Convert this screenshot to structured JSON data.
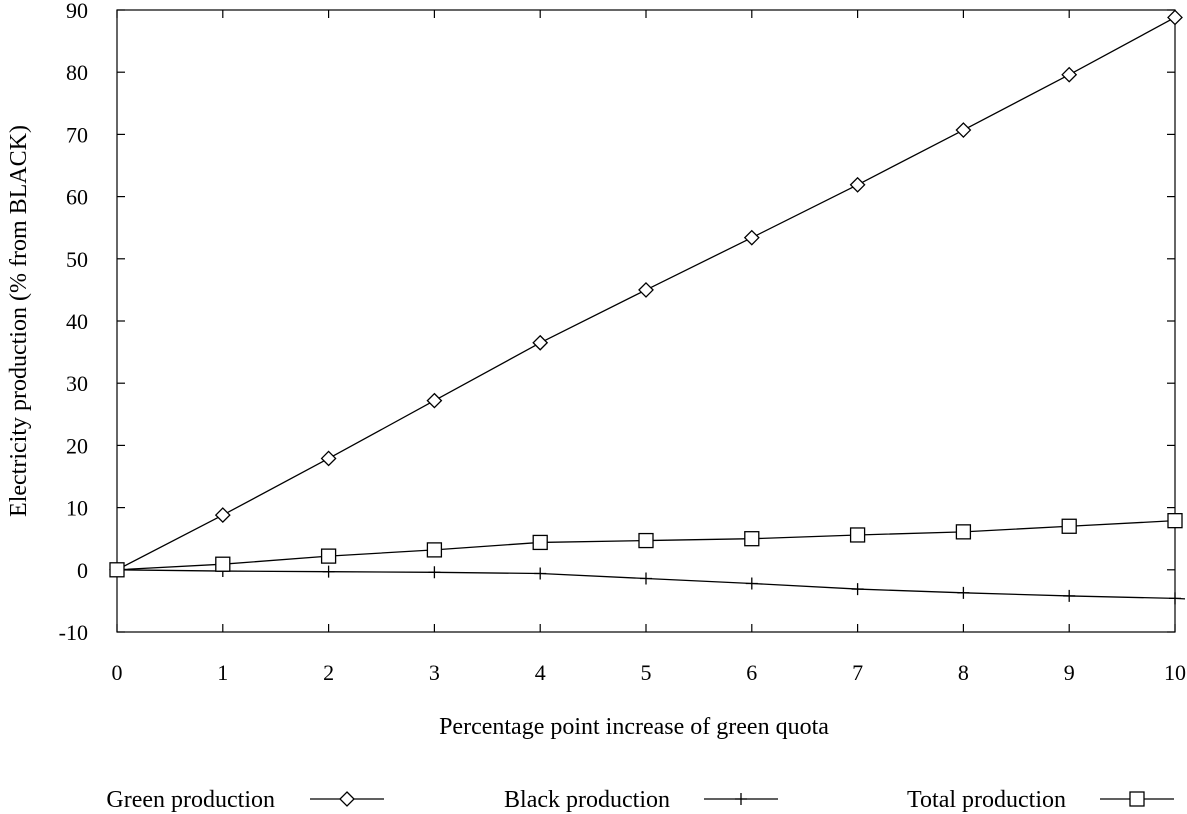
{
  "chart_data": {
    "type": "line",
    "title": "",
    "xlabel": "Percentage point increase of green quota",
    "ylabel": "Electricity production (% from BLACK)",
    "xlim": [
      0,
      10
    ],
    "ylim": [
      -10,
      90
    ],
    "x_ticks": [
      0,
      1,
      2,
      3,
      4,
      5,
      6,
      7,
      8,
      9,
      10
    ],
    "y_ticks": [
      -10,
      0,
      10,
      20,
      30,
      40,
      50,
      60,
      70,
      80,
      90
    ],
    "grid": false,
    "legend_position": "bottom",
    "x": [
      0,
      1,
      2,
      3,
      4,
      5,
      6,
      7,
      8,
      9,
      10
    ],
    "series": [
      {
        "name": "Green production",
        "marker": "diamond",
        "values": [
          0,
          8.8,
          17.9,
          27.2,
          36.5,
          45.0,
          53.4,
          61.9,
          70.7,
          79.6,
          88.8
        ]
      },
      {
        "name": "Black production",
        "marker": "plus",
        "values": [
          0,
          -0.2,
          -0.3,
          -0.4,
          -0.6,
          -1.4,
          -2.2,
          -3.1,
          -3.7,
          -4.2,
          -4.6
        ]
      },
      {
        "name": "Total production",
        "marker": "square",
        "values": [
          0,
          0.9,
          2.2,
          3.2,
          4.4,
          4.7,
          5.0,
          5.6,
          6.1,
          7.0,
          7.9
        ]
      }
    ]
  }
}
